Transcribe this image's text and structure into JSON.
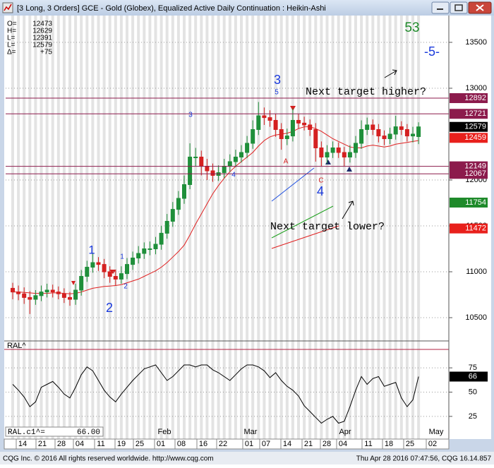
{
  "chart_data": {
    "type": "candlestick",
    "title": "[3 Long, 3 Orders]  GCE - Gold (Globex), Equalized Active Daily Continuation : Heikin-Ashi",
    "readout": [
      {
        "label": "O=",
        "value": 12473
      },
      {
        "label": "H=",
        "value": 12629
      },
      {
        "label": "L=",
        "value": 12391
      },
      {
        "label": "L=",
        "value": 12579
      },
      {
        "label": "Δ=",
        "value": 75,
        "value_label": "+75"
      }
    ],
    "up_color": "#1f8f3a",
    "down_color": "#d42020",
    "open": [
      10820,
      10780,
      10760,
      10720,
      10700,
      10740,
      10780,
      10800,
      10780,
      10760,
      10720,
      10700,
      10800,
      10950,
      11050,
      11100,
      11080,
      11000,
      10950,
      10920,
      10980,
      11080,
      11150,
      11200,
      11250,
      11250,
      11300,
      11420,
      11550,
      11680,
      11800,
      11950,
      12250,
      12250,
      12150,
      12100,
      12050,
      12080,
      12150,
      12200,
      12250,
      12300,
      12400,
      12550,
      12700,
      12680,
      12650,
      12550,
      12450,
      12480,
      12650,
      12620,
      12600,
      12550,
      12350,
      12250,
      12300,
      12350,
      12300,
      12250,
      12300,
      12400,
      12550,
      12600,
      12550,
      12480,
      12450,
      12500,
      12580,
      12550,
      12480,
      12473
    ],
    "high": [
      10880,
      10850,
      10830,
      10790,
      10800,
      10850,
      10870,
      10860,
      10840,
      10820,
      10780,
      10870,
      11020,
      11120,
      11200,
      11160,
      11140,
      11060,
      11010,
      11060,
      11150,
      11220,
      11280,
      11320,
      11330,
      11380,
      11500,
      11630,
      11760,
      11880,
      12050,
      12400,
      12350,
      12320,
      12230,
      12180,
      12160,
      12230,
      12280,
      12330,
      12380,
      12480,
      12650,
      12850,
      12790,
      12760,
      12720,
      12620,
      12560,
      12780,
      12720,
      12690,
      12660,
      12620,
      12420,
      12380,
      12420,
      12410,
      12360,
      12380,
      12480,
      12650,
      12680,
      12660,
      12610,
      12540,
      12570,
      12700,
      12640,
      12610,
      12580,
      12629
    ],
    "low": [
      10700,
      10690,
      10650,
      10540,
      10640,
      10680,
      10720,
      10720,
      10700,
      10660,
      10630,
      10640,
      10740,
      10890,
      10990,
      11010,
      10930,
      10880,
      10850,
      10870,
      10920,
      11020,
      11090,
      11140,
      11180,
      11190,
      11240,
      11360,
      11490,
      11620,
      11740,
      11900,
      12150,
      12050,
      12000,
      11980,
      11990,
      12020,
      12090,
      12140,
      12190,
      12240,
      12340,
      12490,
      12600,
      12580,
      12470,
      12330,
      12380,
      12420,
      12560,
      12540,
      12480,
      12200,
      12150,
      12180,
      12240,
      12240,
      12150,
      12190,
      12240,
      12340,
      12490,
      12490,
      12410,
      12380,
      12390,
      12440,
      12490,
      12420,
      12410,
      12391
    ],
    "close": [
      10780,
      10760,
      10720,
      10700,
      10740,
      10780,
      10800,
      10780,
      10760,
      10720,
      10700,
      10800,
      10950,
      11050,
      11100,
      11080,
      11000,
      10950,
      10920,
      10980,
      11080,
      11150,
      11200,
      11250,
      11250,
      11300,
      11420,
      11550,
      11680,
      11800,
      11950,
      12250,
      12250,
      12150,
      12100,
      12050,
      12080,
      12150,
      12200,
      12250,
      12300,
      12400,
      12550,
      12700,
      12680,
      12650,
      12550,
      12450,
      12480,
      12650,
      12620,
      12600,
      12550,
      12350,
      12250,
      12300,
      12350,
      12300,
      12250,
      12300,
      12400,
      12550,
      12600,
      12550,
      12480,
      12450,
      12500,
      12580,
      12550,
      12480,
      12500,
      12579
    ],
    "moving_average": {
      "color": "#e02020",
      "values": [
        10780,
        10780,
        10775,
        10770,
        10765,
        10765,
        10765,
        10770,
        10770,
        10765,
        10760,
        10765,
        10780,
        10800,
        10820,
        10830,
        10840,
        10845,
        10850,
        10860,
        10880,
        10900,
        10920,
        10950,
        10980,
        11010,
        11050,
        11100,
        11160,
        11220,
        11290,
        11400,
        11520,
        11630,
        11740,
        11850,
        11940,
        12020,
        12090,
        12150,
        12200,
        12250,
        12300,
        12370,
        12430,
        12470,
        12490,
        12500,
        12510,
        12530,
        12560,
        12580,
        12580,
        12560,
        12530,
        12490,
        12450,
        12420,
        12390,
        12360,
        12350,
        12350,
        12370,
        12380,
        12370,
        12360,
        12370,
        12390,
        12400,
        12410,
        12420,
        12430
      ]
    },
    "ylim": [
      10254,
      13746
    ],
    "yticks": [
      10500,
      11000,
      11500,
      12000,
      13000,
      13500
    ],
    "levels": [
      {
        "value": 12892,
        "color": "#8c1b4c",
        "line": true
      },
      {
        "value": 12721,
        "color": "#8c1b4c",
        "line": true
      },
      {
        "value": 12579,
        "color": "#000000",
        "line": false
      },
      {
        "value": 12459,
        "color": "#e8201c",
        "line": false
      },
      {
        "value": 12149,
        "color": "#8c1b4c",
        "line": true
      },
      {
        "value": 12067,
        "color": "#8c1b4c",
        "line": true
      },
      {
        "value": 11754,
        "color": "#1e8a2a",
        "line": false
      },
      {
        "value": 11472,
        "color": "#e8201c",
        "line": false
      }
    ],
    "annotations": [
      "3",
      "5",
      "1",
      "2",
      "1",
      "2",
      "3",
      "4",
      "4",
      "A",
      "C",
      "Next target higher?",
      "Next target lower?",
      "53",
      "-5-"
    ],
    "indicator": {
      "name": "RAL^",
      "readout_label": "RAL.c1^=",
      "readout_value": 66,
      "readout_value_label": "66.00",
      "color": "#000000",
      "ylim": [
        14,
        94
      ],
      "yticks": [
        25,
        50,
        75
      ],
      "values": [
        58,
        52,
        45,
        35,
        40,
        55,
        58,
        61,
        55,
        48,
        44,
        55,
        68,
        76,
        72,
        62,
        52,
        45,
        40,
        48,
        55,
        62,
        68,
        74,
        76,
        78,
        70,
        62,
        66,
        72,
        78,
        78,
        76,
        78,
        78,
        73,
        70,
        66,
        62,
        68,
        74,
        78,
        78,
        76,
        72,
        65,
        70,
        62,
        56,
        52,
        46,
        36,
        30,
        24,
        18,
        22,
        25,
        18,
        20,
        35,
        52,
        66,
        58,
        64,
        66,
        56,
        58,
        60,
        44,
        35,
        42,
        66
      ]
    },
    "date_labels": [
      "14",
      "21",
      "28",
      "04",
      "11",
      "19",
      "25",
      "01",
      "08",
      "16",
      "22",
      "01",
      "07",
      "14",
      "21",
      "28",
      "04",
      "11",
      "18",
      "25",
      "02"
    ],
    "month_labels": [
      "Feb",
      "Mar",
      "Apr",
      "May"
    ],
    "footer_left": "CQG Inc. © 2016 All rights reserved worldwide. http://www.cqg.com",
    "footer_right": "Thu Apr 28 2016 07:47:56, CQG 16.14.857"
  }
}
